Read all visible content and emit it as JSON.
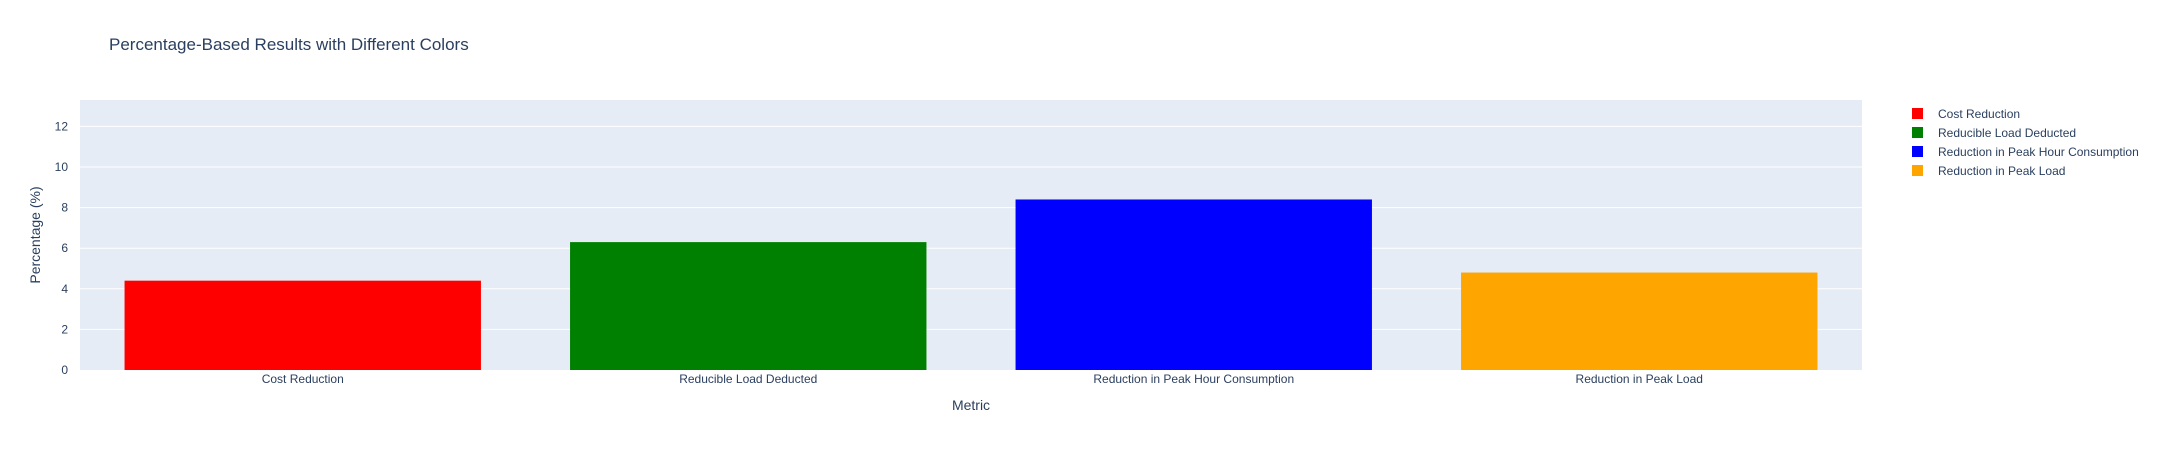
{
  "chart_data": {
    "type": "bar",
    "title": "Percentage-Based Results with Different Colors",
    "xlabel": "Metric",
    "ylabel": "Percentage (%)",
    "ylim": [
      0,
      13.3
    ],
    "yticks": [
      0,
      2,
      4,
      6,
      8,
      10,
      12
    ],
    "grid": true,
    "legend_position": "top-right",
    "categories": [
      "Cost Reduction",
      "Reducible Load Deducted",
      "Reduction in Peak Hour Consumption",
      "Reduction in Peak Load"
    ],
    "series": [
      {
        "name": "Cost Reduction",
        "category": "Cost Reduction",
        "value": 4.4,
        "color": "#ff0000"
      },
      {
        "name": "Reducible Load Deducted",
        "category": "Reducible Load Deducted",
        "value": 6.3,
        "color": "#008000"
      },
      {
        "name": "Reduction in Peak Hour Consumption",
        "category": "Reduction in Peak Hour Consumption",
        "value": 8.4,
        "color": "#0000ff"
      },
      {
        "name": "Reduction in Peak Load",
        "category": "Reduction in Peak Load",
        "value": 4.8,
        "color": "#ffa500"
      }
    ],
    "colors": {
      "plot_background": "#e5ecf6",
      "grid": "#ffffff",
      "text": "#2a3f5f"
    }
  }
}
